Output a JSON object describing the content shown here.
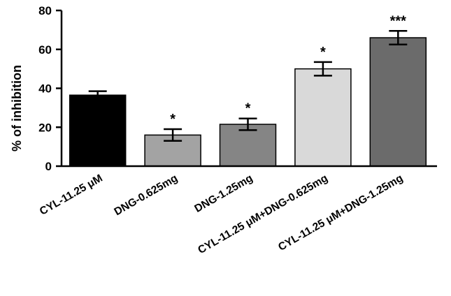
{
  "chart_data": {
    "type": "bar",
    "title": "",
    "xlabel": "",
    "ylabel": "% of inhibition",
    "ylim": [
      0,
      80
    ],
    "yticks": [
      0,
      20,
      40,
      60,
      80
    ],
    "grid": false,
    "categories": [
      "CYL-11.25 μM",
      "DNG-0.625mg",
      "DNG-1.25mg",
      "CYL-11.25 μM+DNG-0.625mg",
      "CYL-11.25 μM+DNG-1.25mg"
    ],
    "values": [
      36.5,
      16,
      21.5,
      50,
      66
    ],
    "errors": [
      2,
      3,
      3,
      3.5,
      3.5
    ],
    "significance": [
      "",
      "*",
      "*",
      "*",
      "***"
    ],
    "colors": [
      "#000000",
      "#a3a3a3",
      "#858585",
      "#d9d9d9",
      "#6b6b6b"
    ]
  }
}
